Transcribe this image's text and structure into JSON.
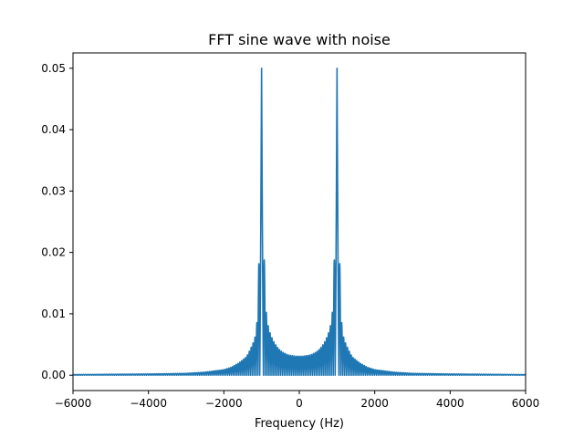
{
  "chart_data": {
    "type": "line",
    "title": "FFT sine wave with noise",
    "xlabel": "Frequency (Hz)",
    "ylabel": "",
    "xlim": [
      -6000,
      6000
    ],
    "ylim": [
      -0.0025,
      0.0525
    ],
    "xticks": [
      -6000,
      -4000,
      -2000,
      0,
      2000,
      4000,
      6000
    ],
    "xtick_labels": [
      "−6000",
      "−4000",
      "−2000",
      "0",
      "2000",
      "4000",
      "6000"
    ],
    "yticks": [
      0.0,
      0.01,
      0.02,
      0.03,
      0.04,
      0.05
    ],
    "ytick_labels": [
      "0.00",
      "0.01",
      "0.02",
      "0.03",
      "0.04",
      "0.05"
    ],
    "grid": false,
    "legend": "none",
    "line_color": "#1f77b4",
    "peak_frequencies_hz": [
      -1000,
      1000
    ],
    "peak_amplitude": 0.05,
    "sidelobe_spacing_hz": 50,
    "series": [
      {
        "x": [
          -6000,
          -5000,
          -4000,
          -3000,
          -2500,
          -2000,
          -1800,
          -1600,
          -1400,
          -1300,
          -1200,
          -1150,
          -1100,
          -1050,
          -1000,
          -950,
          -900,
          -850,
          -800,
          -700,
          -600,
          -500,
          -400,
          -300,
          -200,
          -100,
          0,
          100,
          200,
          300,
          400,
          500,
          600,
          700,
          800,
          850,
          900,
          950,
          1000,
          1050,
          1100,
          1150,
          1200,
          1300,
          1400,
          1600,
          1800,
          2000,
          2500,
          3000,
          4000,
          5000,
          6000
        ],
        "y": [
          0.0001,
          0.00015,
          0.0002,
          0.0003,
          0.0005,
          0.0009,
          0.0013,
          0.002,
          0.003,
          0.0042,
          0.0056,
          0.0068,
          0.0102,
          0.025,
          0.05,
          0.025,
          0.0116,
          0.0088,
          0.0073,
          0.0057,
          0.0047,
          0.004,
          0.0036,
          0.0033,
          0.0032,
          0.0031,
          0.0031,
          0.0031,
          0.0032,
          0.0033,
          0.0036,
          0.004,
          0.0047,
          0.0057,
          0.0073,
          0.0088,
          0.0116,
          0.025,
          0.05,
          0.025,
          0.0102,
          0.0068,
          0.0056,
          0.0042,
          0.003,
          0.002,
          0.0013,
          0.0009,
          0.0005,
          0.0003,
          0.0002,
          0.00015,
          0.0001
        ]
      }
    ]
  }
}
